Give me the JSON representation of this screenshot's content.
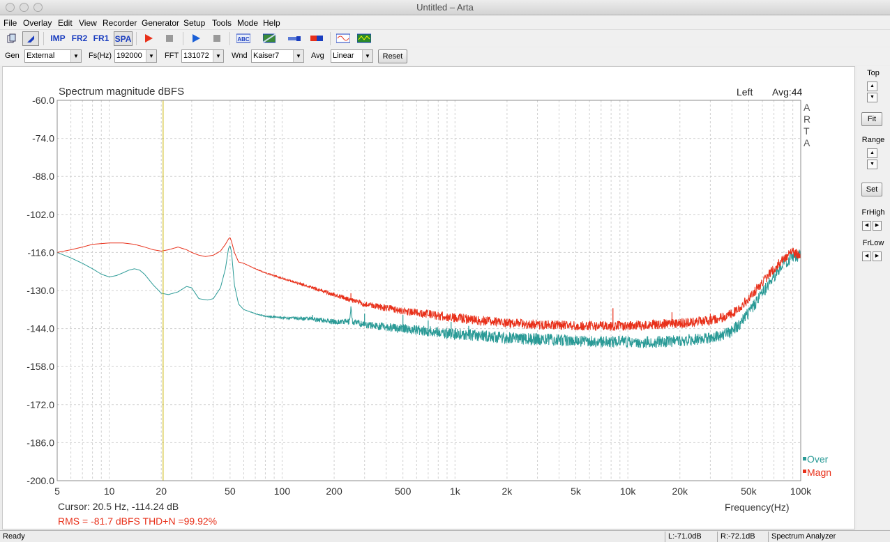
{
  "window": {
    "title": "Untitled – Arta"
  },
  "menu": [
    "File",
    "Overlay",
    "Edit",
    "View",
    "Recorder",
    "Generator",
    "Setup",
    "Tools",
    "Mode",
    "Help"
  ],
  "toolbar": {
    "imp_label": "IMP",
    "fr2_label": "FR2",
    "fr1_label": "FR1",
    "spa_label": "SPA",
    "icons": [
      "new-document-icon",
      "marker-icon",
      "record-icon",
      "stop-icon",
      "play-icon",
      "stop-icon",
      "abc-label-icon",
      "pattern-icon",
      "meter-icon",
      "bar-icon",
      "sine-generator-icon",
      "scope-icon"
    ]
  },
  "controls": {
    "gen_label": "Gen",
    "gen_value": "External",
    "fs_label": "Fs(Hz)",
    "fs_value": "192000",
    "fft_label": "FFT",
    "fft_value": "131072",
    "wnd_label": "Wnd",
    "wnd_value": "Kaiser7",
    "avg_label": "Avg",
    "avg_value": "Linear",
    "reset_label": "Reset"
  },
  "right_panel": {
    "top_label": "Top",
    "fit_label": "Fit",
    "range_label": "Range",
    "set_label": "Set",
    "frhigh_label": "FrHigh",
    "frlow_label": "FrLow"
  },
  "status": {
    "ready": "Ready",
    "left_level": "L:-71.0dB",
    "right_level": "R:-72.1dB",
    "mode": "Spectrum Analyzer"
  },
  "chart_data": {
    "type": "line",
    "title": "Spectrum magnitude dBFS",
    "channel_label": "Left",
    "avg_label": "Avg:44",
    "watermark": [
      "A",
      "R",
      "T",
      "A"
    ],
    "xlabel": "Frequency(Hz)",
    "ylabel": "",
    "x_scale": "log",
    "xlim": [
      5,
      100000
    ],
    "ylim": [
      -200,
      -60
    ],
    "y_ticks": [
      "-60.0",
      "-74.0",
      "-88.0",
      "-102.0",
      "-116.0",
      "-130.0",
      "-144.0",
      "-158.0",
      "-172.0",
      "-186.0",
      "-200.0"
    ],
    "x_ticks": [
      {
        "v": 5,
        "label": "5"
      },
      {
        "v": 10,
        "label": "10"
      },
      {
        "v": 20,
        "label": "20"
      },
      {
        "v": 50,
        "label": "50"
      },
      {
        "v": 100,
        "label": "100"
      },
      {
        "v": 200,
        "label": "200"
      },
      {
        "v": 500,
        "label": "500"
      },
      {
        "v": 1000,
        "label": "1k"
      },
      {
        "v": 2000,
        "label": "2k"
      },
      {
        "v": 5000,
        "label": "5k"
      },
      {
        "v": 10000,
        "label": "10k"
      },
      {
        "v": 20000,
        "label": "20k"
      },
      {
        "v": 50000,
        "label": "50k"
      },
      {
        "v": 100000,
        "label": "100k"
      }
    ],
    "grid": true,
    "cursor": {
      "x": 20.5,
      "y": -114.24,
      "text": "Cursor:    20.5 Hz, -114.24 dB",
      "color": "#c8b400"
    },
    "rms_text": "RMS =  -81.7 dBFS   THD+N =99.92%",
    "legend_position": "bottom-right",
    "series": [
      {
        "name": "Over",
        "color": "#2a9a96",
        "noise": 2.2,
        "x": [
          5,
          6,
          7,
          8,
          9,
          10,
          11,
          12,
          13,
          14,
          15,
          16,
          18,
          20,
          22,
          25,
          28,
          30,
          33,
          37,
          40,
          44,
          47,
          49,
          50,
          51,
          53,
          56,
          60,
          70,
          80,
          100,
          150,
          200,
          245,
          250,
          255,
          300,
          500,
          1000,
          2000,
          5000,
          10000,
          15000,
          20000,
          25000,
          30000,
          35000,
          40000,
          45000,
          50000,
          60000,
          70000,
          80000,
          90000,
          100000
        ],
        "y": [
          -116,
          -118,
          -120,
          -122,
          -124,
          -125,
          -124.5,
          -123.5,
          -122.5,
          -122,
          -122.5,
          -124,
          -128,
          -131,
          -131.5,
          -130.5,
          -128.5,
          -129,
          -133,
          -133.5,
          -133,
          -129,
          -122,
          -114.5,
          -113.5,
          -116,
          -128,
          -135,
          -137,
          -138.5,
          -139.5,
          -140,
          -140.5,
          -141.5,
          -141.5,
          -136,
          -141.5,
          -142.5,
          -144,
          -146,
          -147.5,
          -148.5,
          -149,
          -149,
          -148.5,
          -148,
          -147.5,
          -146.5,
          -145,
          -142,
          -138,
          -131,
          -125,
          -120,
          -117.5,
          -117
        ],
        "spikes": [
          [
            150,
            -139
          ],
          [
            180,
            -141
          ],
          [
            250,
            -136
          ],
          [
            300,
            -138.5
          ],
          [
            500,
            -139
          ],
          [
            700,
            -141
          ],
          [
            950,
            -141.5
          ],
          [
            1200,
            -143
          ]
        ]
      },
      {
        "name": "Magn",
        "color": "#e8301a",
        "noise": 1.8,
        "x": [
          5,
          6,
          7,
          8,
          10,
          12,
          14,
          16,
          18,
          20,
          22,
          25,
          28,
          30,
          33,
          36,
          40,
          44,
          47,
          49,
          50,
          51,
          53,
          56,
          60,
          70,
          80,
          100,
          150,
          200,
          250,
          300,
          500,
          1000,
          2000,
          5000,
          8000,
          10000,
          15000,
          20000,
          25000,
          30000,
          35000,
          40000,
          45000,
          50000,
          60000,
          70000,
          80000,
          90000,
          100000
        ],
        "y": [
          -116,
          -115,
          -114,
          -113,
          -112.5,
          -112.5,
          -113,
          -114,
          -115,
          -115.5,
          -115,
          -114,
          -115,
          -116,
          -117,
          -117.5,
          -117,
          -115.5,
          -113,
          -111,
          -110.5,
          -112,
          -116,
          -119.5,
          -120,
          -122,
          -123.5,
          -125.5,
          -129,
          -131.5,
          -133.5,
          -135,
          -137.5,
          -140,
          -142,
          -143,
          -143,
          -143,
          -142.5,
          -142,
          -141.5,
          -141,
          -140,
          -138.5,
          -136,
          -133,
          -127,
          -122,
          -118,
          -116,
          -117
        ],
        "spikes": [
          [
            250,
            -131
          ],
          [
            8200,
            -136.5
          ],
          [
            18000,
            -138
          ],
          [
            25000,
            -140
          ],
          [
            30000,
            -138.5
          ]
        ]
      }
    ]
  }
}
